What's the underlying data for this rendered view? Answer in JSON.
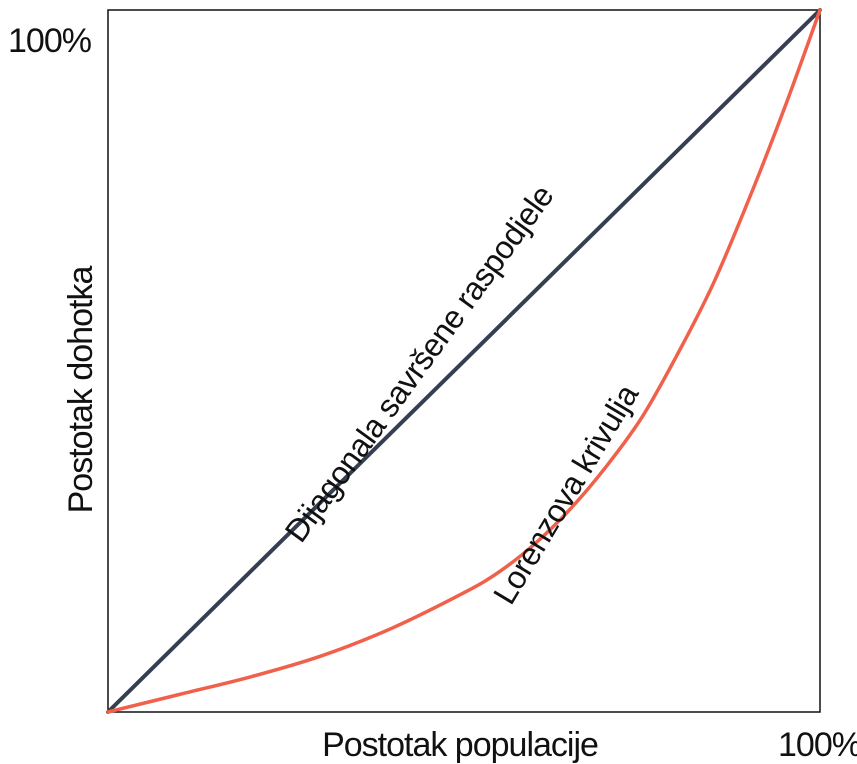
{
  "chart_data": {
    "type": "line",
    "title": "",
    "xlabel": "Postotak populacije",
    "ylabel": "Postotak dohotka",
    "xlim": [
      0,
      100
    ],
    "ylim": [
      0,
      100
    ],
    "tick_labels": {
      "x_max": "100%",
      "y_max": "100%"
    },
    "grid": false,
    "series": [
      {
        "name": "Dijagonala savršene raspodjele",
        "color": "#363f52",
        "x": [
          0,
          100
        ],
        "y": [
          0,
          100
        ]
      },
      {
        "name": "Lorenzova krivulja",
        "color": "#f0604a",
        "x": [
          0,
          10,
          20,
          30,
          40,
          50,
          55,
          60,
          65,
          70,
          75,
          80,
          85,
          90,
          95,
          100
        ],
        "y": [
          0,
          2.5,
          5,
          8,
          12,
          17,
          20,
          24,
          29,
          35,
          42,
          51,
          61,
          73,
          86,
          100
        ]
      }
    ]
  }
}
